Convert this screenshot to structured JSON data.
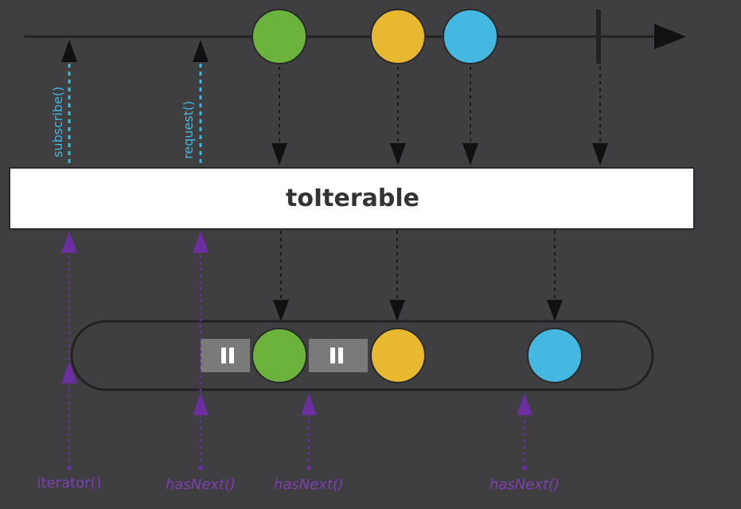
{
  "operator": {
    "label": "toIterable"
  },
  "upstream_signals": [
    {
      "label": "subscribe()"
    },
    {
      "label": "request()"
    }
  ],
  "consumer_calls": [
    {
      "label": "iterator()"
    },
    {
      "label": "hasNext()"
    },
    {
      "label": "hasNext()"
    },
    {
      "label": "hasNext()"
    }
  ],
  "source_items": [
    {
      "color": "#6cb33e"
    },
    {
      "color": "#e8b830"
    },
    {
      "color": "#44b8e0"
    }
  ],
  "iterable_items": [
    {
      "color": "#6cb33e"
    },
    {
      "color": "#e8b830"
    },
    {
      "color": "#44b8e0"
    }
  ],
  "blocked_icons": [
    {
      "glyph": "II"
    },
    {
      "glyph": "II"
    }
  ],
  "colors": {
    "background": "#3f3f41",
    "timeline": "#1e1e1e",
    "operator_box": "#ffffff",
    "signal_cyan": "#3fb8e0",
    "call_purple": "#6a2e9e",
    "pause_box": "#7a7a7a"
  }
}
